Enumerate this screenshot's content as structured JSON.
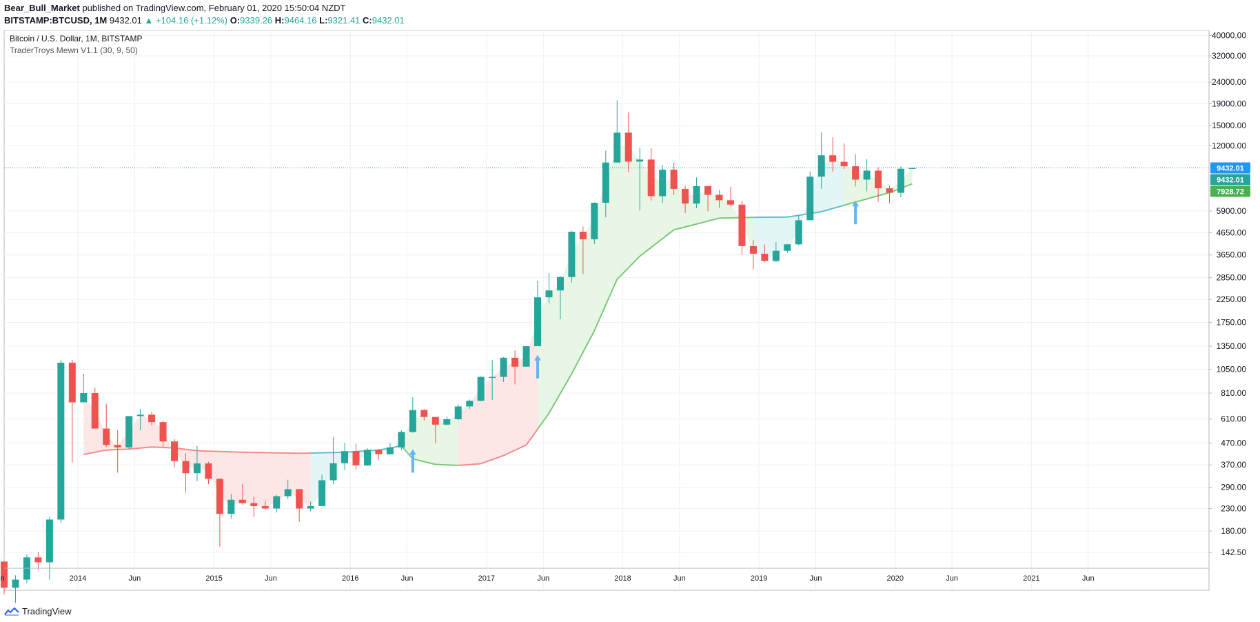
{
  "header": {
    "author": "Bear_Bull_Market",
    "published_text": "published on TradingView.com, February 01, 2020 15:50:04 NZDT",
    "symbol_line": "BITSTAMP:BTCUSD, 1M",
    "last": "9432.01",
    "change": "▲ +104.16 (+1.12%)",
    "o_label": "O:",
    "o": "9339.26",
    "h_label": "H:",
    "h": "9464.16",
    "l_label": "L:",
    "l": "9321.41",
    "c_label": "C:",
    "c": "9432.01"
  },
  "legend": {
    "title": "Bitcoin / U.S. Dollar, 1M, BITSTAMP",
    "indicator": "TraderTroys Mewn V1.1 (30, 9, 50)"
  },
  "footer": {
    "brand": "TradingView"
  },
  "colors": {
    "up": "#26a69a",
    "down": "#ef5350",
    "ma_red": "#f28b8b",
    "ma_teal": "#5bc0c8",
    "ma_green": "#7ac97a",
    "fill_red": "#fde2e2",
    "fill_teal": "#dff3f5",
    "fill_green": "#e4f4e1",
    "arrow": "#64b5f6",
    "price_line": "#2b8fb5",
    "badge_blue": "#2196f3",
    "badge_teal": "#26a69a",
    "badge_green": "#4caf50"
  },
  "chart_data": {
    "type": "candlestick",
    "title": "Bitcoin / U.S. Dollar, 1M, BITSTAMP",
    "y_scale": "log",
    "ylim": [
      120,
      41000
    ],
    "y_ticks": [
      "40000.00",
      "32000.00",
      "24000.00",
      "19000.00",
      "15000.00",
      "12000.00",
      "9432.01",
      "7928.72",
      "5900.00",
      "4650.00",
      "3650.00",
      "2850.00",
      "2250.00",
      "1750.00",
      "1350.00",
      "1050.00",
      "810.00",
      "610.00",
      "470.00",
      "370.00",
      "290.00",
      "230.00",
      "180.00",
      "142.50"
    ],
    "y_tick_values": [
      40000,
      32000,
      24000,
      19000,
      15000,
      12000,
      5900,
      4650,
      3650,
      2850,
      2250,
      1750,
      1350,
      1050,
      810,
      610,
      470,
      370,
      290,
      230,
      180,
      142.5
    ],
    "x_ticks": [
      {
        "label": "Jun",
        "date": "2013-06"
      },
      {
        "label": "2014",
        "date": "2014-01"
      },
      {
        "label": "Jun",
        "date": "2014-06"
      },
      {
        "label": "2015",
        "date": "2015-01"
      },
      {
        "label": "Jun",
        "date": "2015-06"
      },
      {
        "label": "2016",
        "date": "2016-01"
      },
      {
        "label": "Jun",
        "date": "2016-06"
      },
      {
        "label": "2017",
        "date": "2017-01"
      },
      {
        "label": "Jun",
        "date": "2017-06"
      },
      {
        "label": "2018",
        "date": "2018-01"
      },
      {
        "label": "Jun",
        "date": "2018-06"
      },
      {
        "label": "2019",
        "date": "2019-01"
      },
      {
        "label": "Jun",
        "date": "2019-06"
      },
      {
        "label": "2020",
        "date": "2020-01"
      },
      {
        "label": "Jun",
        "date": "2020-06"
      },
      {
        "label": "2021",
        "date": "2021-01"
      },
      {
        "label": "Jun",
        "date": "2021-06"
      }
    ],
    "candles": [
      {
        "d": "2013-06",
        "o": 129,
        "h": 130,
        "l": 90,
        "c": 97
      },
      {
        "d": "2013-07",
        "o": 97,
        "h": 111,
        "l": 66,
        "c": 106
      },
      {
        "d": "2013-08",
        "o": 106,
        "h": 140,
        "l": 102,
        "c": 135
      },
      {
        "d": "2013-09",
        "o": 135,
        "h": 143,
        "l": 118,
        "c": 128
      },
      {
        "d": "2013-10",
        "o": 128,
        "h": 210,
        "l": 106,
        "c": 204
      },
      {
        "d": "2013-11",
        "o": 204,
        "h": 1165,
        "l": 196,
        "c": 1128
      },
      {
        "d": "2013-12",
        "o": 1128,
        "h": 1163,
        "l": 380,
        "c": 732
      },
      {
        "d": "2014-01",
        "o": 732,
        "h": 1000,
        "l": 732,
        "c": 810
      },
      {
        "d": "2014-02",
        "o": 810,
        "h": 860,
        "l": 550,
        "c": 550
      },
      {
        "d": "2014-03",
        "o": 550,
        "h": 720,
        "l": 450,
        "c": 460
      },
      {
        "d": "2014-04",
        "o": 460,
        "h": 540,
        "l": 340,
        "c": 448
      },
      {
        "d": "2014-05",
        "o": 448,
        "h": 630,
        "l": 440,
        "c": 630
      },
      {
        "d": "2014-06",
        "o": 630,
        "h": 680,
        "l": 540,
        "c": 640
      },
      {
        "d": "2014-07",
        "o": 640,
        "h": 660,
        "l": 570,
        "c": 590
      },
      {
        "d": "2014-08",
        "o": 590,
        "h": 600,
        "l": 450,
        "c": 478
      },
      {
        "d": "2014-09",
        "o": 478,
        "h": 490,
        "l": 360,
        "c": 386
      },
      {
        "d": "2014-10",
        "o": 386,
        "h": 420,
        "l": 275,
        "c": 338
      },
      {
        "d": "2014-11",
        "o": 338,
        "h": 455,
        "l": 310,
        "c": 376
      },
      {
        "d": "2014-12",
        "o": 376,
        "h": 383,
        "l": 300,
        "c": 318
      },
      {
        "d": "2015-01",
        "o": 318,
        "h": 320,
        "l": 152,
        "c": 217
      },
      {
        "d": "2015-02",
        "o": 217,
        "h": 270,
        "l": 206,
        "c": 253
      },
      {
        "d": "2015-03",
        "o": 253,
        "h": 300,
        "l": 240,
        "c": 244
      },
      {
        "d": "2015-04",
        "o": 244,
        "h": 262,
        "l": 210,
        "c": 236
      },
      {
        "d": "2015-05",
        "o": 236,
        "h": 250,
        "l": 228,
        "c": 230
      },
      {
        "d": "2015-06",
        "o": 230,
        "h": 267,
        "l": 220,
        "c": 263
      },
      {
        "d": "2015-07",
        "o": 263,
        "h": 315,
        "l": 255,
        "c": 284
      },
      {
        "d": "2015-08",
        "o": 284,
        "h": 285,
        "l": 199,
        "c": 230
      },
      {
        "d": "2015-09",
        "o": 230,
        "h": 248,
        "l": 223,
        "c": 236
      },
      {
        "d": "2015-10",
        "o": 236,
        "h": 333,
        "l": 236,
        "c": 313
      },
      {
        "d": "2015-11",
        "o": 313,
        "h": 502,
        "l": 300,
        "c": 377
      },
      {
        "d": "2015-12",
        "o": 377,
        "h": 470,
        "l": 350,
        "c": 430
      },
      {
        "d": "2016-01",
        "o": 430,
        "h": 467,
        "l": 350,
        "c": 368
      },
      {
        "d": "2016-02",
        "o": 368,
        "h": 445,
        "l": 365,
        "c": 437
      },
      {
        "d": "2016-03",
        "o": 437,
        "h": 440,
        "l": 392,
        "c": 416
      },
      {
        "d": "2016-04",
        "o": 416,
        "h": 470,
        "l": 414,
        "c": 448
      },
      {
        "d": "2016-05",
        "o": 448,
        "h": 540,
        "l": 435,
        "c": 530
      },
      {
        "d": "2016-06",
        "o": 530,
        "h": 775,
        "l": 525,
        "c": 673
      },
      {
        "d": "2016-07",
        "o": 673,
        "h": 680,
        "l": 600,
        "c": 624
      },
      {
        "d": "2016-08",
        "o": 624,
        "h": 627,
        "l": 470,
        "c": 574
      },
      {
        "d": "2016-09",
        "o": 574,
        "h": 627,
        "l": 570,
        "c": 609
      },
      {
        "d": "2016-10",
        "o": 609,
        "h": 715,
        "l": 603,
        "c": 700
      },
      {
        "d": "2016-11",
        "o": 700,
        "h": 755,
        "l": 680,
        "c": 745
      },
      {
        "d": "2016-12",
        "o": 745,
        "h": 975,
        "l": 740,
        "c": 966
      },
      {
        "d": "2017-01",
        "o": 966,
        "h": 1160,
        "l": 752,
        "c": 966
      },
      {
        "d": "2017-02",
        "o": 966,
        "h": 1200,
        "l": 915,
        "c": 1190
      },
      {
        "d": "2017-03",
        "o": 1190,
        "h": 1290,
        "l": 890,
        "c": 1080
      },
      {
        "d": "2017-04",
        "o": 1080,
        "h": 1350,
        "l": 1080,
        "c": 1350
      },
      {
        "d": "2017-05",
        "o": 1350,
        "h": 2760,
        "l": 1350,
        "c": 2300
      },
      {
        "d": "2017-06",
        "o": 2300,
        "h": 3000,
        "l": 2150,
        "c": 2480
      },
      {
        "d": "2017-07",
        "o": 2480,
        "h": 2900,
        "l": 1810,
        "c": 2870
      },
      {
        "d": "2017-08",
        "o": 2870,
        "h": 4750,
        "l": 2700,
        "c": 4700
      },
      {
        "d": "2017-09",
        "o": 4700,
        "h": 4975,
        "l": 2970,
        "c": 4330
      },
      {
        "d": "2017-10",
        "o": 4330,
        "h": 6470,
        "l": 4110,
        "c": 6450
      },
      {
        "d": "2017-11",
        "o": 6450,
        "h": 11400,
        "l": 5500,
        "c": 10000
      },
      {
        "d": "2017-12",
        "o": 10000,
        "h": 19700,
        "l": 10000,
        "c": 13850
      },
      {
        "d": "2018-01",
        "o": 13850,
        "h": 17250,
        "l": 9000,
        "c": 10100
      },
      {
        "d": "2018-02",
        "o": 10100,
        "h": 11780,
        "l": 5920,
        "c": 10330
      },
      {
        "d": "2018-03",
        "o": 10330,
        "h": 11700,
        "l": 6600,
        "c": 6930
      },
      {
        "d": "2018-04",
        "o": 6930,
        "h": 9750,
        "l": 6430,
        "c": 9250
      },
      {
        "d": "2018-05",
        "o": 9250,
        "h": 10000,
        "l": 7030,
        "c": 7500
      },
      {
        "d": "2018-06",
        "o": 7500,
        "h": 7780,
        "l": 5760,
        "c": 6390
      },
      {
        "d": "2018-07",
        "o": 6390,
        "h": 8500,
        "l": 6080,
        "c": 7730
      },
      {
        "d": "2018-08",
        "o": 7730,
        "h": 7760,
        "l": 5880,
        "c": 7030
      },
      {
        "d": "2018-09",
        "o": 7030,
        "h": 7420,
        "l": 6100,
        "c": 6630
      },
      {
        "d": "2018-10",
        "o": 6630,
        "h": 7680,
        "l": 6200,
        "c": 6320
      },
      {
        "d": "2018-11",
        "o": 6320,
        "h": 6580,
        "l": 3650,
        "c": 4020
      },
      {
        "d": "2018-12",
        "o": 4020,
        "h": 4300,
        "l": 3120,
        "c": 3700
      },
      {
        "d": "2019-01",
        "o": 3700,
        "h": 4090,
        "l": 3370,
        "c": 3420
      },
      {
        "d": "2019-02",
        "o": 3420,
        "h": 4200,
        "l": 3380,
        "c": 3820
      },
      {
        "d": "2019-03",
        "o": 3820,
        "h": 4110,
        "l": 3730,
        "c": 4100
      },
      {
        "d": "2019-04",
        "o": 4100,
        "h": 5610,
        "l": 4050,
        "c": 5330
      },
      {
        "d": "2019-05",
        "o": 5330,
        "h": 9070,
        "l": 5330,
        "c": 8570
      },
      {
        "d": "2019-06",
        "o": 8570,
        "h": 13880,
        "l": 7510,
        "c": 10820
      },
      {
        "d": "2019-07",
        "o": 10820,
        "h": 13180,
        "l": 9060,
        "c": 10080
      },
      {
        "d": "2019-08",
        "o": 10080,
        "h": 12330,
        "l": 9320,
        "c": 9600
      },
      {
        "d": "2019-09",
        "o": 9600,
        "h": 10950,
        "l": 7710,
        "c": 8300
      },
      {
        "d": "2019-10",
        "o": 8300,
        "h": 10370,
        "l": 7300,
        "c": 9150
      },
      {
        "d": "2019-11",
        "o": 9150,
        "h": 9500,
        "l": 6520,
        "c": 7550
      },
      {
        "d": "2019-12",
        "o": 7550,
        "h": 7750,
        "l": 6430,
        "c": 7190
      },
      {
        "d": "2020-01",
        "o": 7190,
        "h": 9580,
        "l": 6850,
        "c": 9340
      },
      {
        "d": "2020-02",
        "o": 9339.26,
        "h": 9464.16,
        "l": 9321.41,
        "c": 9432.01
      }
    ],
    "ma": [
      {
        "d": "2014-01",
        "v": 415
      },
      {
        "d": "2014-03",
        "v": 435
      },
      {
        "d": "2014-05",
        "v": 440
      },
      {
        "d": "2014-07",
        "v": 450
      },
      {
        "d": "2014-09",
        "v": 445
      },
      {
        "d": "2014-11",
        "v": 432
      },
      {
        "d": "2015-03",
        "v": 425
      },
      {
        "d": "2015-08",
        "v": 420
      },
      {
        "d": "2015-12",
        "v": 425
      },
      {
        "d": "2016-03",
        "v": 435
      },
      {
        "d": "2016-05",
        "v": 455
      },
      {
        "d": "2016-06",
        "v": 395
      },
      {
        "d": "2016-08",
        "v": 372
      },
      {
        "d": "2016-10",
        "v": 368
      },
      {
        "d": "2016-12",
        "v": 375
      },
      {
        "d": "2017-02",
        "v": 410
      },
      {
        "d": "2017-04",
        "v": 460
      },
      {
        "d": "2017-06",
        "v": 650
      },
      {
        "d": "2017-08",
        "v": 1000
      },
      {
        "d": "2017-10",
        "v": 1600
      },
      {
        "d": "2017-12",
        "v": 2800
      },
      {
        "d": "2018-02",
        "v": 3600
      },
      {
        "d": "2018-05",
        "v": 4800
      },
      {
        "d": "2018-09",
        "v": 5450
      },
      {
        "d": "2018-12",
        "v": 5500
      },
      {
        "d": "2019-03",
        "v": 5520
      },
      {
        "d": "2019-06",
        "v": 5850
      },
      {
        "d": "2019-09",
        "v": 6500
      },
      {
        "d": "2019-12",
        "v": 7200
      },
      {
        "d": "2020-02",
        "v": 7928.72
      }
    ],
    "bands": [
      {
        "from": "2014-01",
        "to": "2015-09",
        "tone": "red"
      },
      {
        "from": "2015-09",
        "to": "2016-05",
        "tone": "teal"
      },
      {
        "from": "2016-05",
        "to": "2016-10",
        "tone": "green"
      },
      {
        "from": "2016-10",
        "to": "2017-05",
        "tone": "red"
      },
      {
        "from": "2017-05",
        "to": "2018-12",
        "tone": "green"
      },
      {
        "from": "2018-12",
        "to": "2019-08",
        "tone": "teal"
      },
      {
        "from": "2019-08",
        "to": "2020-02",
        "tone": "green"
      }
    ],
    "signals": [
      {
        "d": "2016-06",
        "v": 340
      },
      {
        "d": "2017-05",
        "v": 950
      },
      {
        "d": "2019-09",
        "v": 5100
      }
    ],
    "price_badges": [
      {
        "label": "9432.01",
        "value": 9432.01,
        "tone": "blue"
      },
      {
        "label": "9432.01",
        "value": 9432.01,
        "tone": "teal"
      },
      {
        "label": "7928.72",
        "value": 7928.72,
        "tone": "green"
      }
    ],
    "last_price": 9432.01
  }
}
